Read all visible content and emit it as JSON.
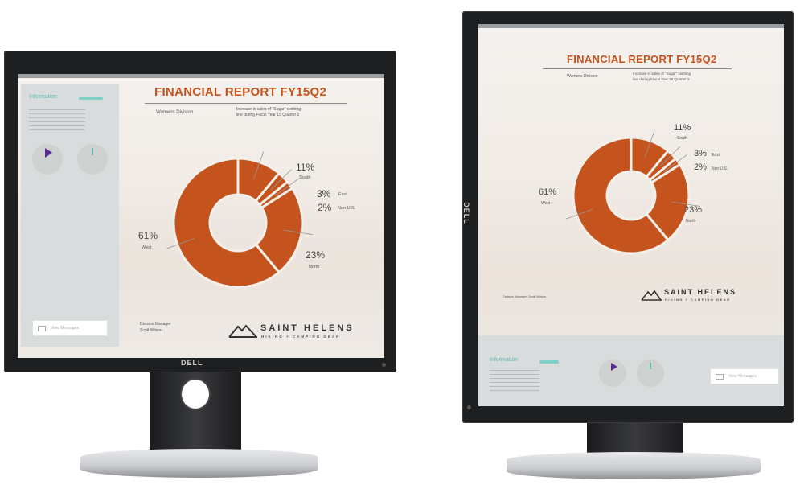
{
  "brand": "DELL",
  "report": {
    "title": "FINANCIAL REPORT FY15Q2",
    "division": "Womens Division",
    "description_line1": "Increase in sales of \"Sugar\" clothing",
    "description_line2": "line during Fiscal Year 15 Quarter 2",
    "manager_title": "Division Manager",
    "manager_name": "Scott Wilson",
    "manager_inline": "Division Manager Scott Wilson",
    "logo_name": "SAINT HELENS",
    "logo_tagline": "HIKING + CAMPING GEAR"
  },
  "panel": {
    "heading": "Information",
    "button": "View Messages"
  },
  "colors": {
    "accent": "#c5531e",
    "teal": "#59b9b1",
    "purple": "#5b2a8c",
    "bezel": "#1e1f21"
  },
  "chart_data": {
    "type": "pie",
    "style": "donut",
    "slices": [
      {
        "pct": "11%",
        "label": "South",
        "value": 11
      },
      {
        "pct": "3%",
        "label": "East",
        "value": 3
      },
      {
        "pct": "2%",
        "label": "Non U.S.",
        "value": 2
      },
      {
        "pct": "23%",
        "label": "North",
        "value": 23
      },
      {
        "pct": "61%",
        "label": "West",
        "value": 61
      }
    ]
  }
}
